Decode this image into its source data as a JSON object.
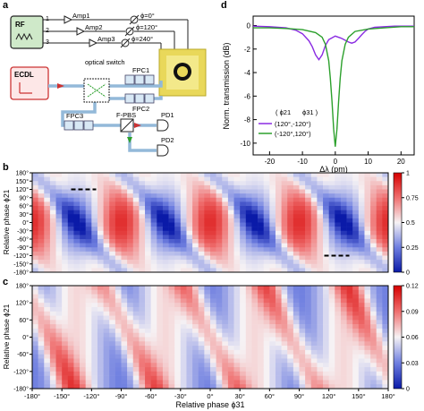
{
  "figure": {
    "panel_labels": {
      "a": "a",
      "b": "b",
      "c": "c",
      "d": "d"
    }
  },
  "panel_a": {
    "rf": "RF",
    "channels": [
      "1",
      "2",
      "3"
    ],
    "amps": [
      "Amp1",
      "Amp2",
      "Amp3"
    ],
    "phases": [
      "ϕ=0°",
      "ϕ=120°",
      "ϕ=240°"
    ],
    "ecdl": "ECDL",
    "optical_switch": "optical switch",
    "fpc1": "FPC1",
    "fpc2": "FPC2",
    "fpc3": "FPC3",
    "fpbs": "F-PBS",
    "pd1": "PD1",
    "pd2": "PD2"
  },
  "chart_data": [
    {
      "type": "line",
      "panel": "d",
      "ylabel": "Norm. transmission (dB)",
      "xlabel": "Δλ (pm)",
      "xlim": [
        -25,
        24
      ],
      "ylim": [
        -11,
        0.8
      ],
      "xticks": [
        "-20",
        "-10",
        "0",
        "10",
        "20"
      ],
      "yticks": [
        "0",
        "-2",
        "-4",
        "-6",
        "-8",
        "-10"
      ],
      "legend": {
        "header_phi21": "( ϕ21",
        "header_phi31": "ϕ31 )",
        "placement": "center-right"
      },
      "series": [
        {
          "name": "(120°,-120°)",
          "color": "#8a2be2",
          "x": [
            -25,
            -20,
            -15,
            -12,
            -10,
            -8,
            -7,
            -6,
            -5,
            -4,
            -3,
            -2,
            0,
            2,
            4,
            5,
            6,
            7,
            8,
            9,
            10,
            12,
            15,
            18,
            21,
            24
          ],
          "y": [
            -0.05,
            -0.1,
            -0.2,
            -0.4,
            -0.7,
            -1.3,
            -1.8,
            -2.5,
            -2.9,
            -2.5,
            -1.7,
            -1.2,
            -0.9,
            -1.1,
            -1.4,
            -1.5,
            -1.4,
            -1.1,
            -0.8,
            -0.5,
            -0.3,
            -0.15,
            -0.1,
            -0.05,
            -0.05,
            -0.05
          ]
        },
        {
          "name": "(-120°,120°)",
          "color": "#2ca02c",
          "x": [
            -25,
            -20,
            -15,
            -10,
            -6,
            -4,
            -3,
            -2,
            -1.5,
            -1,
            -0.5,
            0,
            0.5,
            1,
            1.5,
            2,
            3,
            4,
            6,
            10,
            15,
            20,
            24
          ],
          "y": [
            -0.2,
            -0.2,
            -0.25,
            -0.35,
            -0.6,
            -1.0,
            -1.6,
            -3.0,
            -4.5,
            -6.5,
            -8.8,
            -10.3,
            -8.8,
            -6.5,
            -4.5,
            -3.0,
            -1.6,
            -1.0,
            -0.5,
            -0.3,
            -0.2,
            -0.1,
            -0.1
          ]
        }
      ]
    },
    {
      "type": "heatmap",
      "panel": "b",
      "ylabel": "Relative phase ϕ21",
      "yticks": [
        "180°",
        "150°",
        "120°",
        "90°",
        "60°",
        "30°",
        "0°",
        "-30°",
        "-60°",
        "-90°",
        "-120°",
        "-150°",
        "-180°"
      ],
      "colorbar": {
        "min": 0,
        "max": 1,
        "ticks": [
          "1",
          "0.75",
          "0.5",
          "0.25",
          "0"
        ]
      },
      "marked_points": [
        {
          "phi31": -128,
          "phi21": 120
        },
        {
          "phi31": 128,
          "phi21": -120
        }
      ]
    },
    {
      "type": "heatmap",
      "panel": "c",
      "ylabel": "Relative phase ϕ21",
      "xlabel": "Relative phase ϕ31",
      "xticks": [
        "-180°",
        "-150°",
        "-120°",
        "-90°",
        "-60°",
        "-30°",
        "0°",
        "30°",
        "60°",
        "90°",
        "120°",
        "150°",
        "180°"
      ],
      "yticks": [
        "180°",
        "120°",
        "60°",
        "0°",
        "-60°",
        "-120°",
        "-180°"
      ],
      "colorbar": {
        "min": 0,
        "max": 0.12,
        "ticks": [
          "0.12",
          "0.09",
          "0.06",
          "0.03",
          "0"
        ]
      }
    }
  ]
}
